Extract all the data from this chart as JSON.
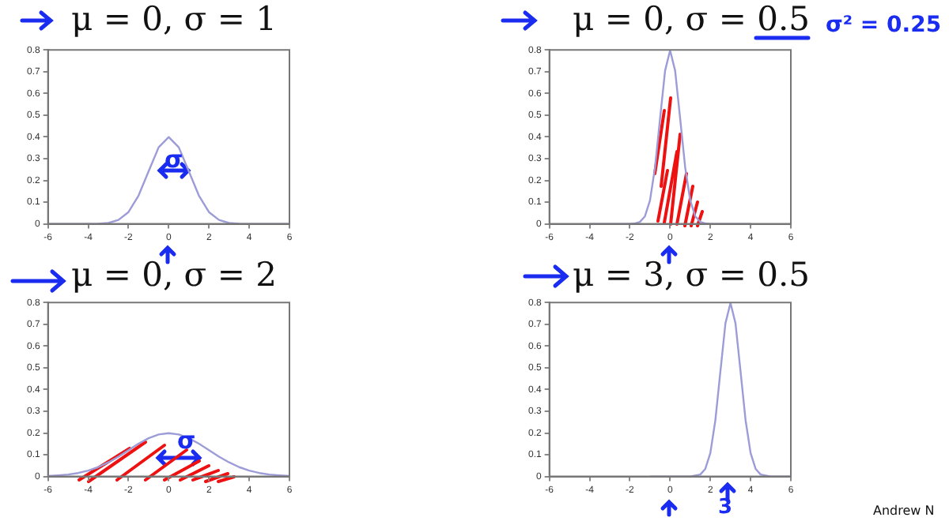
{
  "chart_data": [
    {
      "type": "line",
      "title": "μ = 0, σ = 1",
      "x": [
        -6,
        -5,
        -4,
        -3.5,
        -3,
        -2.5,
        -2,
        -1.5,
        -1,
        -0.5,
        0,
        0.5,
        1,
        1.5,
        2,
        2.5,
        3,
        3.5,
        4,
        5,
        6
      ],
      "values": [
        0,
        0,
        0,
        0.001,
        0.004,
        0.018,
        0.054,
        0.13,
        0.242,
        0.352,
        0.399,
        0.352,
        0.242,
        0.13,
        0.054,
        0.018,
        0.004,
        0.001,
        0,
        0,
        0
      ],
      "color": "#9c9cd8",
      "xlim": [
        -6,
        6
      ],
      "xticks": [
        -6,
        -4,
        -2,
        0,
        2,
        4,
        6
      ],
      "ylim": [
        0,
        0.8
      ],
      "yticks": [
        0,
        0.1,
        0.2,
        0.3,
        0.4,
        0.5,
        0.6,
        0.7,
        0.8
      ],
      "grid": false,
      "marker": "none",
      "annotations": [
        "σ"
      ]
    },
    {
      "type": "line",
      "title": "μ = 0, σ = 0.5",
      "x": [
        -4,
        -3,
        -2,
        -1.75,
        -1.5,
        -1.25,
        -1,
        -0.75,
        -0.5,
        -0.25,
        0,
        0.25,
        0.5,
        0.75,
        1,
        1.25,
        1.5,
        1.75,
        2,
        3,
        4
      ],
      "values": [
        0,
        0,
        0,
        0.002,
        0.009,
        0.035,
        0.108,
        0.259,
        0.484,
        0.704,
        0.798,
        0.704,
        0.484,
        0.259,
        0.108,
        0.035,
        0.009,
        0.002,
        0,
        0,
        0
      ],
      "color": "#9c9cd8",
      "xlim": [
        -6,
        6
      ],
      "xticks": [
        -6,
        -4,
        -2,
        0,
        2,
        4,
        6
      ],
      "ylim": [
        0,
        0.8
      ],
      "yticks": [
        0,
        0.1,
        0.2,
        0.3,
        0.4,
        0.5,
        0.6,
        0.7,
        0.8
      ],
      "grid": false,
      "marker": "none",
      "annotations": [
        "σ² = 0.25"
      ]
    },
    {
      "type": "line",
      "title": "μ = 0, σ = 2",
      "x": [
        -6,
        -5.5,
        -5,
        -4.5,
        -4,
        -3.5,
        -3,
        -2.5,
        -2,
        -1.5,
        -1,
        -0.5,
        0,
        0.5,
        1,
        1.5,
        2,
        2.5,
        3,
        3.5,
        4,
        4.5,
        5,
        5.5,
        6
      ],
      "values": [
        0.002,
        0.005,
        0.009,
        0.016,
        0.027,
        0.043,
        0.065,
        0.091,
        0.121,
        0.151,
        0.176,
        0.193,
        0.199,
        0.193,
        0.176,
        0.151,
        0.121,
        0.091,
        0.065,
        0.043,
        0.027,
        0.016,
        0.009,
        0.005,
        0.002
      ],
      "color": "#9c9cd8",
      "xlim": [
        -6,
        6
      ],
      "xticks": [
        -6,
        -4,
        -2,
        0,
        2,
        4,
        6
      ],
      "ylim": [
        0,
        0.8
      ],
      "yticks": [
        0,
        0.1,
        0.2,
        0.3,
        0.4,
        0.5,
        0.6,
        0.7,
        0.8
      ],
      "grid": false,
      "marker": "none",
      "annotations": [
        "σ"
      ]
    },
    {
      "type": "line",
      "title": "μ = 3, σ = 0.5",
      "x": [
        -1,
        0,
        1,
        1.5,
        1.75,
        2,
        2.25,
        2.5,
        2.75,
        3,
        3.25,
        3.5,
        3.75,
        4,
        4.25,
        4.5,
        5,
        6
      ],
      "values": [
        0,
        0,
        0,
        0.009,
        0.035,
        0.108,
        0.259,
        0.484,
        0.704,
        0.798,
        0.704,
        0.484,
        0.259,
        0.108,
        0.035,
        0.009,
        0,
        0
      ],
      "color": "#9c9cd8",
      "xlim": [
        -6,
        6
      ],
      "xticks": [
        -6,
        -4,
        -2,
        0,
        2,
        4,
        6
      ],
      "ylim": [
        0,
        0.8
      ],
      "yticks": [
        0,
        0.1,
        0.2,
        0.3,
        0.4,
        0.5,
        0.6,
        0.7,
        0.8
      ],
      "grid": false,
      "marker": "none",
      "annotations": [
        "3",
        "Andrew N"
      ]
    }
  ]
}
